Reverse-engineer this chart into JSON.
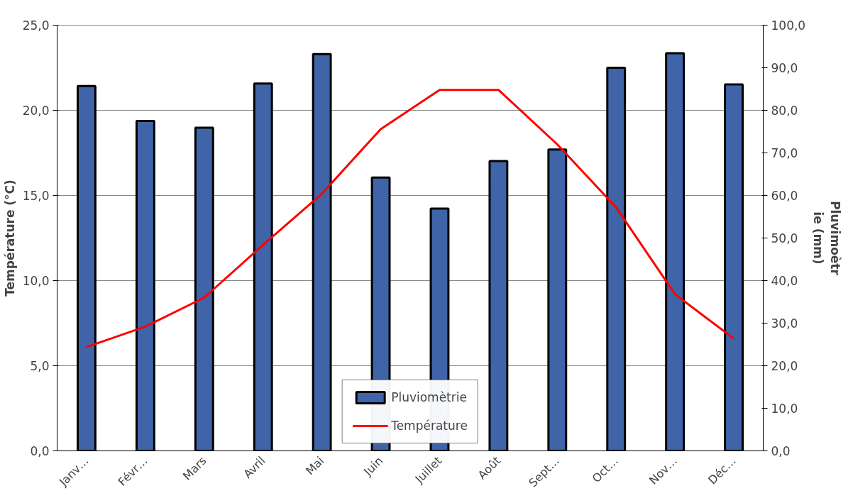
{
  "chart_data": {
    "type": "bar",
    "ylabel": "Température (°C)",
    "y2label": "Pluvimoètr\nie (mm)",
    "categories": [
      "Janv…",
      "Févr…",
      "Mars",
      "Avril",
      "Mai",
      "Juin",
      "Juillet",
      "Août",
      "Sept…",
      "Oct…",
      "Nov…",
      "Déc…"
    ],
    "series": [
      {
        "name": "Pluviomètrie",
        "axis": "y2",
        "color": "#3f64a8",
        "values": [
          85.7,
          77.5,
          75.9,
          86.3,
          93.2,
          64.2,
          56.9,
          68.1,
          70.8,
          90.0,
          93.4,
          86.1
        ]
      },
      {
        "name": "Température",
        "type": "line",
        "color": "#ff0000",
        "values": [
          6.1,
          7.3,
          9.0,
          12.1,
          15.1,
          18.9,
          21.2,
          21.2,
          18.0,
          14.3,
          9.2,
          6.6
        ]
      }
    ],
    "ylim": [
      0,
      25
    ],
    "yticks": [
      {
        "value": 0,
        "label": "0,0"
      },
      {
        "value": 5,
        "label": "5,0"
      },
      {
        "value": 10,
        "label": "10,0"
      },
      {
        "value": 15,
        "label": "15,0"
      },
      {
        "value": 20,
        "label": "20,0"
      },
      {
        "value": 25,
        "label": "25,0"
      }
    ],
    "y2lim": [
      0,
      100
    ],
    "y2ticks": [
      {
        "value": 0,
        "label": "0,0"
      },
      {
        "value": 10,
        "label": "10,0"
      },
      {
        "value": 20,
        "label": "20,0"
      },
      {
        "value": 30,
        "label": "30,0"
      },
      {
        "value": 40,
        "label": "40,0"
      },
      {
        "value": 50,
        "label": "50,0"
      },
      {
        "value": 60,
        "label": "60,0"
      },
      {
        "value": 70,
        "label": "70,0"
      },
      {
        "value": 80,
        "label": "80,0"
      },
      {
        "value": 90,
        "label": "90,0"
      },
      {
        "value": 100,
        "label": "100,0"
      }
    ],
    "grid": "y",
    "legend": "bottom"
  }
}
